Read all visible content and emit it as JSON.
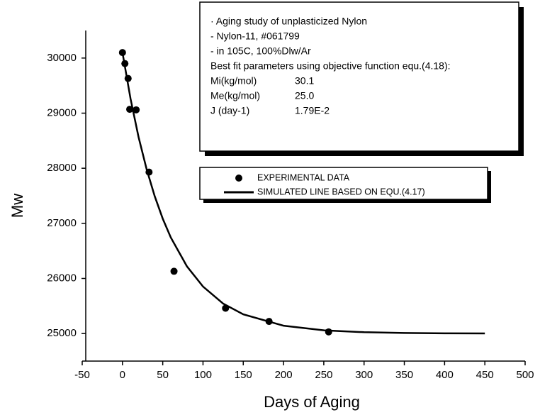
{
  "chart_data": {
    "type": "scatter",
    "xlabel": "Days of Aging",
    "ylabel": "Mw",
    "xlim": [
      -50,
      500
    ],
    "xticks": [
      -50,
      0,
      50,
      100,
      150,
      200,
      250,
      300,
      350,
      400,
      450,
      500
    ],
    "ylim": [
      24500,
      30500
    ],
    "yticks": [
      25000,
      26000,
      27000,
      28000,
      29000,
      30000
    ],
    "series": [
      {
        "name": "EXPERIMENTAL DATA",
        "color": "#000000",
        "mode": "markers",
        "x": [
          0,
          3,
          7,
          9,
          17,
          33,
          64,
          128,
          182,
          256
        ],
        "values": [
          30100,
          29900,
          29630,
          29070,
          29060,
          27930,
          26130,
          25460,
          25220,
          25030
        ]
      },
      {
        "name": "SIMULATED LINE BASED ON EQU.(4.17)",
        "color": "#000000",
        "mode": "line",
        "x": [
          0,
          10,
          20,
          30,
          40,
          50,
          60,
          80,
          100,
          125,
          150,
          200,
          250,
          300,
          350,
          400,
          450
        ],
        "values": [
          30100,
          29263,
          28565,
          27982,
          27494,
          27085,
          26744,
          26220,
          25853,
          25544,
          25348,
          25142,
          25058,
          25024,
          25010,
          25004,
          25002
        ]
      }
    ],
    "annotation": {
      "lines": [
        "· Aging study of unplasticized Nylon",
        "- Nylon-11, #061799",
        "- in 105C, 100%Dlw/Ar",
        "Best fit parameters using objective function equ.(4.18):"
      ],
      "params": [
        [
          "Mi(kg/mol)",
          "30.1"
        ],
        [
          "Me(kg/mol)",
          "25.0"
        ],
        [
          "J (day-1)",
          "1.79E-2"
        ]
      ]
    }
  }
}
